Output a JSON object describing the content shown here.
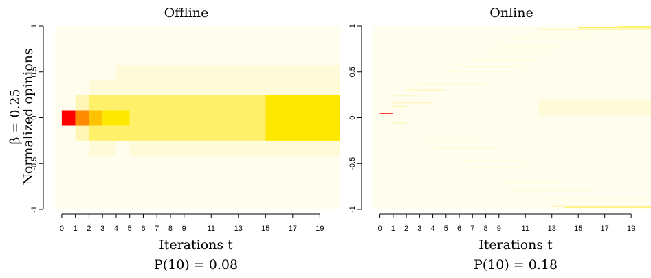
{
  "figure": {
    "ylabel_param": "β = 0.25",
    "ylabel": "Normalized opinions"
  },
  "chart_data": [
    {
      "type": "heatmap",
      "title": "Offline",
      "xlabel": "Iterations t",
      "caption": "P(10) = 0.08",
      "x_ticks": [
        0,
        1,
        2,
        3,
        4,
        5,
        6,
        7,
        8,
        9,
        11,
        13,
        15,
        17,
        19
      ],
      "y_ticks": [
        1,
        0.5,
        0,
        -0.5,
        -1
      ],
      "y_tick_labels": [
        "1",
        "0.5",
        "0",
        "-0.5",
        "-1"
      ],
      "xlim": [
        -0.5,
        20.5
      ],
      "ylim": [
        -1,
        1
      ],
      "colors": {
        "1": "#fffeee",
        "2": "#fffbd8",
        "3": "#fff5b4",
        "4": "#fff06a",
        "5": "#ffe800",
        "6": "#ffc200",
        "7": "#ff8c00",
        "8": "#ff0000"
      },
      "cells": [
        {
          "x0": 0,
          "x1": 1,
          "y0": -0.083,
          "y1": 0.083,
          "level": 8
        },
        {
          "x0": 0,
          "x1": 1,
          "y0": -0.25,
          "y1": -0.083,
          "level": 1
        },
        {
          "x0": 0,
          "x1": 1,
          "y0": 0.083,
          "y1": 0.25,
          "level": 1
        },
        {
          "x0": 1,
          "x1": 2,
          "y0": -0.25,
          "y1": -0.083,
          "level": 3
        },
        {
          "x0": 1,
          "x1": 2,
          "y0": -0.083,
          "y1": 0.083,
          "level": 7
        },
        {
          "x0": 1,
          "x1": 2,
          "y0": 0.083,
          "y1": 0.25,
          "level": 3
        },
        {
          "x0": 1,
          "x1": 2,
          "y0": 0.25,
          "y1": 0.42,
          "level": 1
        },
        {
          "x0": 1,
          "x1": 2,
          "y0": -0.42,
          "y1": -0.25,
          "level": 1
        },
        {
          "x0": 2,
          "x1": 3,
          "y0": -0.083,
          "y1": 0.083,
          "level": 6
        },
        {
          "x0": 3,
          "x1": 5,
          "y0": -0.083,
          "y1": 0.083,
          "level": 5
        },
        {
          "x0": 2,
          "x1": 4,
          "y0": 0.083,
          "y1": 0.25,
          "level": 4
        },
        {
          "x0": 2,
          "x1": 4,
          "y0": -0.25,
          "y1": -0.083,
          "level": 4
        },
        {
          "x0": 2,
          "x1": 4,
          "y0": 0.25,
          "y1": 0.42,
          "level": 2
        },
        {
          "x0": 2,
          "x1": 4,
          "y0": -0.42,
          "y1": -0.25,
          "level": 2
        },
        {
          "x0": 3,
          "x1": 4,
          "y0": 0.42,
          "y1": 0.58,
          "level": 1
        },
        {
          "x0": 5,
          "x1": 15,
          "y0": -0.083,
          "y1": 0.083,
          "level": 4
        },
        {
          "x0": 4,
          "x1": 15,
          "y0": 0.083,
          "y1": 0.25,
          "level": 4
        },
        {
          "x0": 4,
          "x1": 15,
          "y0": -0.25,
          "y1": -0.083,
          "level": 4
        },
        {
          "x0": 4,
          "x1": 20.5,
          "y0": 0.25,
          "y1": 0.42,
          "level": 2
        },
        {
          "x0": 5,
          "x1": 20.5,
          "y0": -0.42,
          "y1": -0.25,
          "level": 2
        },
        {
          "x0": 4,
          "x1": 20.5,
          "y0": 0.42,
          "y1": 0.58,
          "level": 2
        },
        {
          "x0": 15,
          "x1": 20.5,
          "y0": -0.25,
          "y1": 0.25,
          "level": 5
        }
      ]
    },
    {
      "type": "heatmap",
      "title": "Online",
      "xlabel": "Iterations t",
      "caption": "P(10) = 0.18",
      "x_ticks": [
        0,
        1,
        2,
        3,
        4,
        5,
        6,
        7,
        8,
        9,
        11,
        13,
        15,
        17,
        19
      ],
      "y_ticks": [
        1,
        0.5,
        0,
        -0.5,
        -1
      ],
      "y_tick_labels": [
        "1",
        "0.5",
        "0",
        "-0.5",
        "-1"
      ],
      "xlim": [
        -0.5,
        20.5
      ],
      "ylim": [
        -1,
        1
      ],
      "colors": {
        "1": "#fffeee",
        "2": "#fffbd8",
        "3": "#fff5b4",
        "4": "#fff06a",
        "5": "#ffe800",
        "6": "#ffc200",
        "7": "#ff8c00",
        "8": "#ff0000"
      },
      "cells": [
        {
          "x0": 0,
          "x1": 1,
          "y0": 0.045,
          "y1": 0.052,
          "level": 8
        },
        {
          "x0": 1,
          "x1": 20.5,
          "y0": -1,
          "y1": 1,
          "level": 1
        },
        {
          "x0": 6,
          "x1": 20.5,
          "y0": -0.1,
          "y1": 0.5,
          "level": 1
        },
        {
          "x0": 1,
          "x1": 2,
          "y0": 0.12,
          "y1": 0.128,
          "level": 4
        },
        {
          "x0": 1,
          "x1": 2,
          "y0": -0.06,
          "y1": -0.052,
          "level": 3
        },
        {
          "x0": 1,
          "x1": 3,
          "y0": 0.24,
          "y1": 0.248,
          "level": 3
        },
        {
          "x0": 1,
          "x1": 4,
          "y0": 0.16,
          "y1": 0.168,
          "level": 3
        },
        {
          "x0": 2,
          "x1": 5,
          "y0": 0.3,
          "y1": 0.308,
          "level": 3
        },
        {
          "x0": 2,
          "x1": 6,
          "y0": -0.16,
          "y1": -0.152,
          "level": 3
        },
        {
          "x0": 3,
          "x1": 8,
          "y0": 0.36,
          "y1": 0.368,
          "level": 3
        },
        {
          "x0": 3,
          "x1": 8,
          "y0": -0.26,
          "y1": -0.252,
          "level": 3
        },
        {
          "x0": 4,
          "x1": 9,
          "y0": 0.43,
          "y1": 0.438,
          "level": 3
        },
        {
          "x0": 4,
          "x1": 9,
          "y0": -0.33,
          "y1": -0.322,
          "level": 3
        },
        {
          "x0": 5,
          "x1": 10,
          "y0": 0.5,
          "y1": 0.508,
          "level": 2
        },
        {
          "x0": 5,
          "x1": 10,
          "y0": -0.4,
          "y1": -0.392,
          "level": 2
        },
        {
          "x0": 6,
          "x1": 11,
          "y0": 0.56,
          "y1": 0.568,
          "level": 2
        },
        {
          "x0": 6,
          "x1": 11,
          "y0": -0.47,
          "y1": -0.462,
          "level": 2
        },
        {
          "x0": 7,
          "x1": 12,
          "y0": 0.62,
          "y1": 0.628,
          "level": 2
        },
        {
          "x0": 7,
          "x1": 12,
          "y0": -0.54,
          "y1": -0.532,
          "level": 2
        },
        {
          "x0": 8,
          "x1": 13,
          "y0": 0.7,
          "y1": 0.708,
          "level": 2
        },
        {
          "x0": 8,
          "x1": 13,
          "y0": -0.62,
          "y1": -0.612,
          "level": 2
        },
        {
          "x0": 9,
          "x1": 14,
          "y0": 0.78,
          "y1": 0.788,
          "level": 2
        },
        {
          "x0": 9,
          "x1": 14,
          "y0": -0.7,
          "y1": -0.692,
          "level": 2
        },
        {
          "x0": 10,
          "x1": 16,
          "y0": 0.86,
          "y1": 0.868,
          "level": 2
        },
        {
          "x0": 10,
          "x1": 16,
          "y0": -0.8,
          "y1": -0.792,
          "level": 2
        },
        {
          "x0": 11,
          "x1": 20.5,
          "y0": 0.93,
          "y1": 0.94,
          "level": 2
        },
        {
          "x0": 12,
          "x1": 20.5,
          "y0": -0.9,
          "y1": -0.89,
          "level": 2
        },
        {
          "x0": 12,
          "x1": 20.5,
          "y0": 0.96,
          "y1": 0.97,
          "level": 3
        },
        {
          "x0": 15,
          "x1": 20.5,
          "y0": 0.975,
          "y1": 0.985,
          "level": 4
        },
        {
          "x0": 18,
          "x1": 20.5,
          "y0": 0.988,
          "y1": 0.996,
          "level": 5
        },
        {
          "x0": 14,
          "x1": 20.5,
          "y0": -0.985,
          "y1": -0.975,
          "level": 4
        },
        {
          "x0": 13,
          "x1": 20.5,
          "y0": -0.97,
          "y1": -0.96,
          "level": 3
        },
        {
          "x0": 12,
          "x1": 20.5,
          "y0": 0.02,
          "y1": 0.2,
          "level": 2
        },
        {
          "x0": 2,
          "x1": 6,
          "y0": 0.0,
          "y1": 0.01,
          "level": 2
        }
      ]
    }
  ]
}
